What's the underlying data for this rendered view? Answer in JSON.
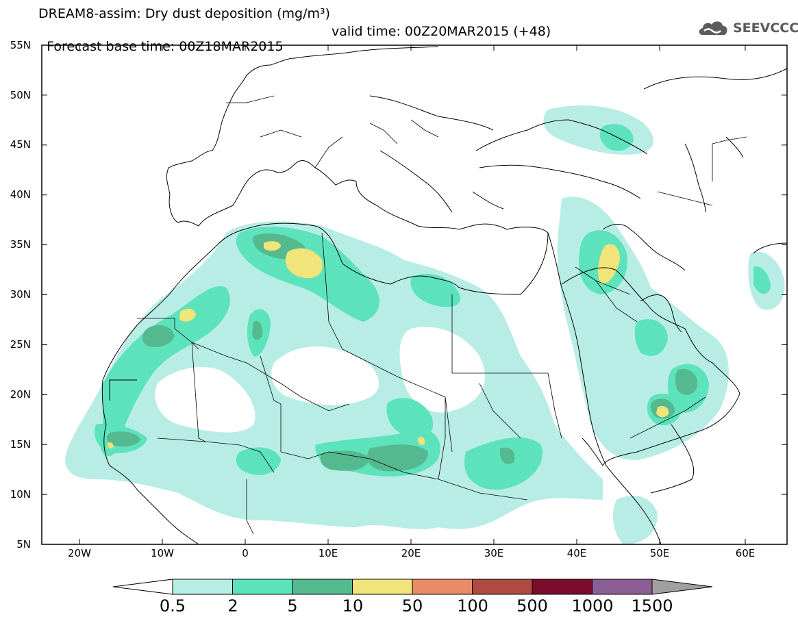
{
  "title": {
    "line1": "DREAM8-assim: Dry dust deposition (mg/m³)",
    "line2_left": "Forecast base time: 00Z18MAR2015",
    "line2_right": "valid time: 00Z20MAR2015 (+48)"
  },
  "logo": {
    "text": "SEEVCCC",
    "icon": "cloud-icon"
  },
  "axes": {
    "lon_ticks": [
      "20W",
      "10W",
      "0",
      "10E",
      "20E",
      "30E",
      "40E",
      "50E",
      "60E"
    ],
    "lat_ticks": [
      "55N",
      "50N",
      "45N",
      "40N",
      "35N",
      "30N",
      "25N",
      "20N",
      "15N",
      "10N",
      "5N"
    ],
    "lon_range": [
      -25,
      65
    ],
    "lat_range": [
      5,
      55
    ]
  },
  "colorbar": {
    "labels": [
      "0.5",
      "2",
      "5",
      "10",
      "50",
      "100",
      "500",
      "1000",
      "1500"
    ],
    "colors": [
      "#b8ede6",
      "#5de3bb",
      "#55b98f",
      "#f1e47a",
      "#e98b64",
      "#b04a40",
      "#7a0c2e",
      "#8c5e96",
      "#a0a0a0"
    ]
  }
}
